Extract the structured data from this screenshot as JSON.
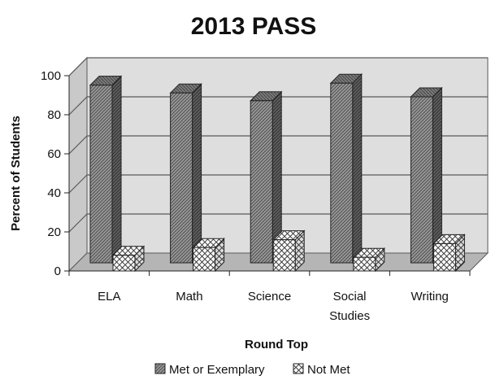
{
  "chart_data": {
    "type": "bar",
    "title": "2013 PASS",
    "xlabel": "Round Top",
    "ylabel": "Percent of Students",
    "categories": [
      "ELA",
      "Math",
      "Science",
      "Social Studies",
      "Writing"
    ],
    "category_lines": [
      [
        "ELA"
      ],
      [
        "Math"
      ],
      [
        "Science"
      ],
      [
        "Social",
        "Studies"
      ],
      [
        "Writing"
      ]
    ],
    "series": [
      {
        "name": "Met or Exemplary",
        "values": [
          91,
          87,
          83,
          92,
          85
        ],
        "pattern": "dense-crosshatch",
        "color": "#8a8a8a"
      },
      {
        "name": "Not Met",
        "values": [
          8,
          12,
          16,
          7,
          14
        ],
        "pattern": "diamond-lattice",
        "color": "#ffffff"
      }
    ],
    "ylim": [
      0,
      100
    ],
    "yticks": [
      0,
      20,
      40,
      60,
      80,
      100
    ],
    "grid": true,
    "legend_position": "bottom",
    "style": "3d-column",
    "colors": {
      "back_wall": "#dedede",
      "floor": "#b5b5b5",
      "gridline": "#5a5a5a",
      "edge": "#222222"
    }
  }
}
